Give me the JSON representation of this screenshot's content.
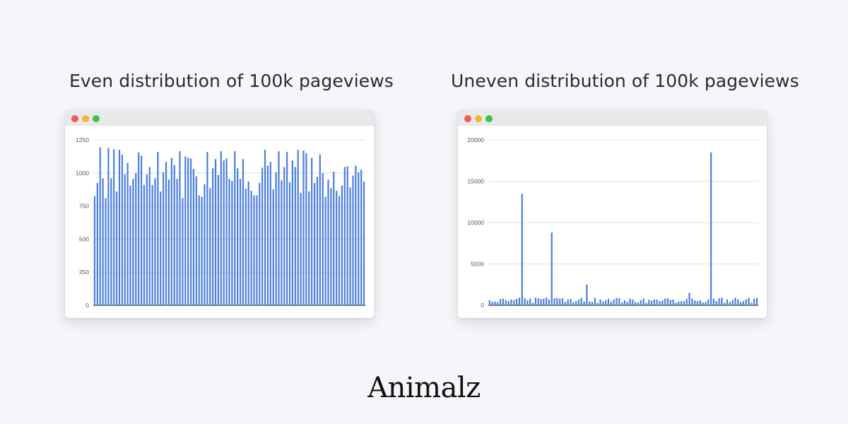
{
  "colors": {
    "bar": "#4a7fde",
    "grid": "#e0e0e0",
    "axis": "#333333",
    "tick_text": "#555555"
  },
  "logo_text": "Animalz",
  "chart_data": [
    {
      "type": "bar",
      "title": "Even distribution of 100k pageviews",
      "xlabel": "",
      "ylabel": "",
      "ylim": [
        0,
        1250
      ],
      "yticks": [
        0,
        250,
        500,
        750,
        1000,
        1250
      ],
      "grid": true,
      "values": [
        825,
        925,
        1195,
        960,
        810,
        1190,
        960,
        1180,
        860,
        1175,
        1140,
        990,
        1075,
        905,
        955,
        1000,
        1155,
        1130,
        910,
        990,
        1045,
        910,
        960,
        1160,
        860,
        1005,
        1085,
        950,
        1115,
        1060,
        955,
        1165,
        810,
        1125,
        1115,
        1110,
        1030,
        975,
        830,
        820,
        915,
        1160,
        885,
        1035,
        1105,
        985,
        1165,
        1095,
        1110,
        955,
        940,
        1165,
        1035,
        955,
        1105,
        880,
        935,
        865,
        830,
        830,
        925,
        1040,
        1175,
        1055,
        1085,
        875,
        1005,
        1165,
        945,
        1045,
        1160,
        930,
        1095,
        1045,
        1175,
        850,
        1170,
        1150,
        860,
        1115,
        925,
        970,
        1140,
        1000,
        820,
        950,
        885,
        1010,
        865,
        825,
        905,
        1045,
        1050,
        890,
        980,
        1055,
        1005,
        1025,
        935
      ]
    },
    {
      "type": "bar",
      "title": "Uneven distribution of 100k pageviews",
      "xlabel": "",
      "ylabel": "",
      "ylim": [
        0,
        20000
      ],
      "yticks": [
        0,
        5000,
        10000,
        15000,
        20000
      ],
      "grid": true,
      "values": [
        600,
        420,
        450,
        380,
        750,
        800,
        620,
        500,
        700,
        620,
        780,
        900,
        13500,
        850,
        600,
        800,
        300,
        900,
        850,
        750,
        800,
        950,
        700,
        8800,
        850,
        900,
        800,
        850,
        400,
        700,
        750,
        400,
        500,
        700,
        900,
        450,
        2500,
        450,
        400,
        900,
        300,
        700,
        450,
        600,
        800,
        450,
        700,
        900,
        850,
        350,
        600,
        400,
        800,
        700,
        400,
        350,
        600,
        800,
        300,
        650,
        550,
        700,
        700,
        500,
        600,
        800,
        850,
        650,
        700,
        300,
        450,
        500,
        500,
        800,
        1500,
        800,
        600,
        500,
        600,
        350,
        400,
        700,
        18500,
        800,
        500,
        850,
        900,
        300,
        700,
        400,
        650,
        900,
        700,
        400,
        500,
        700,
        900,
        300,
        800,
        900
      ]
    }
  ]
}
